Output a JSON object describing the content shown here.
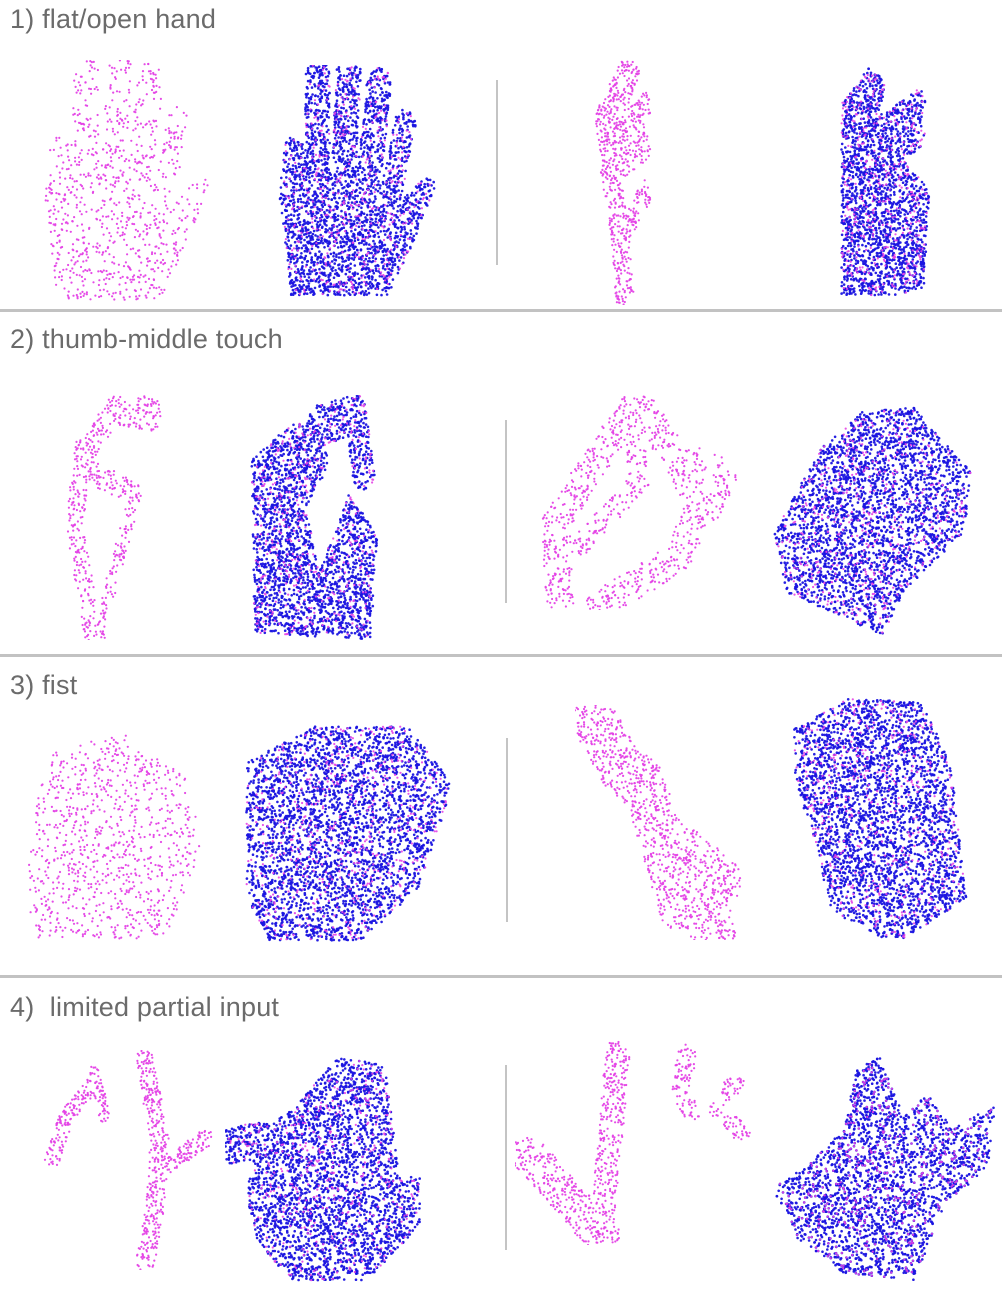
{
  "sections": [
    {
      "title": "1) flat/open hand"
    },
    {
      "title": "2) thumb-middle touch"
    },
    {
      "title": "3) fist"
    },
    {
      "title": "4)  limited partial input"
    }
  ],
  "colors": {
    "partial_input": "#e442e6",
    "completion": "#1a14e0",
    "divider": "#c2c2c2",
    "title_text": "#6b6b6b"
  }
}
